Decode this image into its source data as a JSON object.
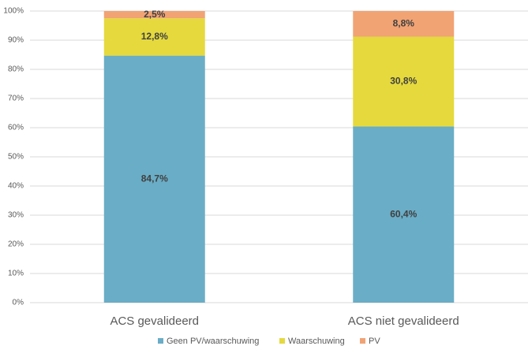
{
  "chart_data": {
    "type": "stacked_bar",
    "categories": [
      "ACS gevalideerd",
      "ACS niet gevalideerd"
    ],
    "series": [
      {
        "name": "Geen PV/waarschuwing",
        "color": "#6aadc6",
        "values": [
          84.7,
          60.4
        ],
        "value_labels": [
          "84,7%",
          "60,4%"
        ]
      },
      {
        "name": "Waarschuwing",
        "color": "#e5d93d",
        "values": [
          12.8,
          30.8
        ],
        "value_labels": [
          "12,8%",
          "30,8%"
        ]
      },
      {
        "name": "PV",
        "color": "#f1a374",
        "values": [
          2.5,
          8.8
        ],
        "value_labels": [
          "2,5%",
          "8,8%"
        ]
      }
    ],
    "ylim": [
      0,
      100
    ],
    "yticks": [
      {
        "value": 0,
        "label": "0%"
      },
      {
        "value": 10,
        "label": "10%"
      },
      {
        "value": 20,
        "label": "20%"
      },
      {
        "value": 30,
        "label": "30%"
      },
      {
        "value": 40,
        "label": "40%"
      },
      {
        "value": 50,
        "label": "50%"
      },
      {
        "value": 60,
        "label": "60%"
      },
      {
        "value": 70,
        "label": "70%"
      },
      {
        "value": 80,
        "label": "80%"
      },
      {
        "value": 90,
        "label": "90%"
      },
      {
        "value": 100,
        "label": "100%"
      }
    ],
    "grid": true,
    "legend": "bottom"
  }
}
